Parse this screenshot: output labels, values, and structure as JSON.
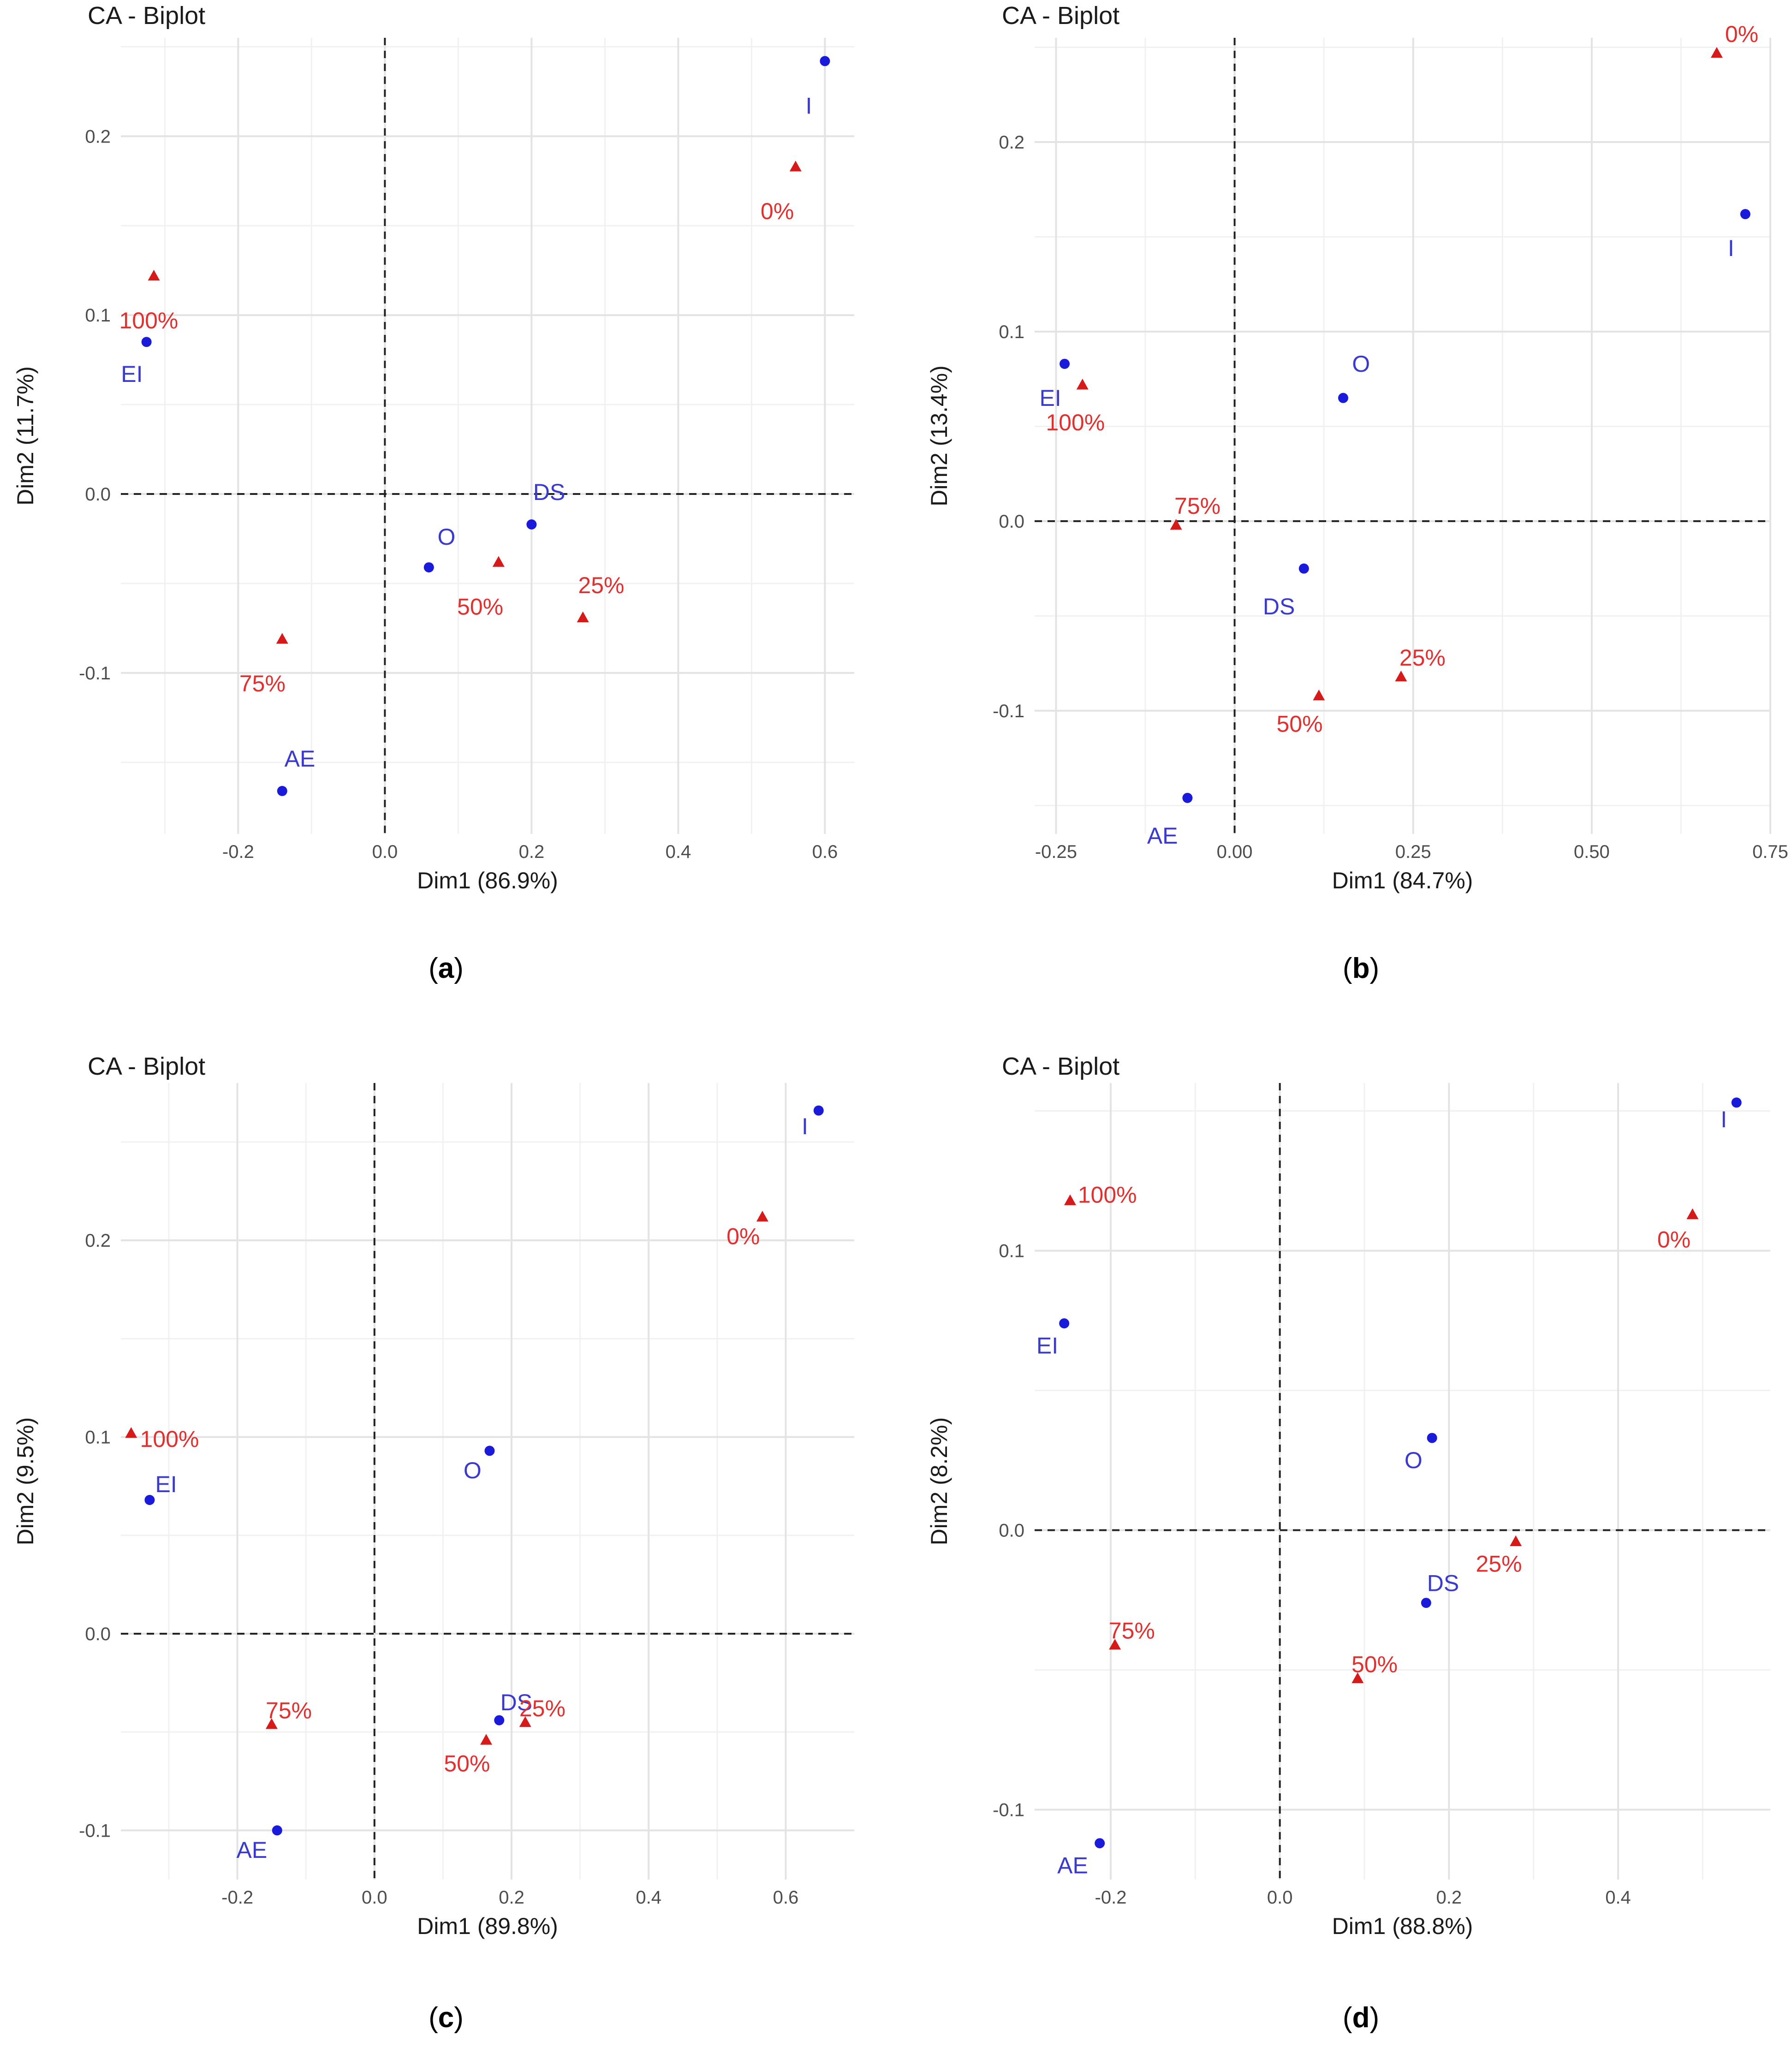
{
  "colors": {
    "row_points": "#1a1adb",
    "row_labels": "#3a3acd",
    "col_points": "#d61a1a",
    "col_labels": "#e03030",
    "grid_major": "#e3e3e3",
    "grid_minor": "#f1f1f1",
    "axis_text": "#4d4d4d",
    "title_text": "#1a1a1a",
    "zero_line": "#222222"
  },
  "chart_data": [
    {
      "type": "scatter",
      "panel_label_letter": "a",
      "title": "CA - Biplot",
      "xlabel": "Dim1 (86.9%)",
      "ylabel": "Dim2 (11.7%)",
      "xlim": [
        -0.36,
        0.64
      ],
      "ylim": [
        -0.19,
        0.255
      ],
      "xticks": [
        -0.2,
        0.0,
        0.2,
        0.4,
        0.6
      ],
      "xtick_labels": [
        "-0.2",
        "0.0",
        "0.2",
        "0.4",
        "0.6"
      ],
      "yticks": [
        -0.1,
        0.0,
        0.1,
        0.2
      ],
      "ytick_labels": [
        "-0.1",
        "0.0",
        "0.1",
        "0.2"
      ],
      "grid": true,
      "zero_lines": true,
      "series": [
        {
          "marker": "circle",
          "points": [
            {
              "label": "I",
              "x": 0.6,
              "y": 0.242,
              "lx": -0.022,
              "ly": -0.025
            },
            {
              "label": "EI",
              "x": -0.325,
              "y": 0.085,
              "lx": -0.02,
              "ly": -0.018
            },
            {
              "label": "DS",
              "x": 0.2,
              "y": -0.017,
              "lx": 0.024,
              "ly": 0.018
            },
            {
              "label": "O",
              "x": 0.06,
              "y": -0.041,
              "lx": 0.024,
              "ly": 0.017
            },
            {
              "label": "AE",
              "x": -0.14,
              "y": -0.166,
              "lx": 0.024,
              "ly": 0.018
            }
          ]
        },
        {
          "marker": "triangle",
          "points": [
            {
              "label": "0%",
              "x": 0.56,
              "y": 0.183,
              "lx": -0.025,
              "ly": -0.025
            },
            {
              "label": "100%",
              "x": -0.315,
              "y": 0.122,
              "lx": -0.007,
              "ly": -0.025
            },
            {
              "label": "50%",
              "x": 0.155,
              "y": -0.038,
              "lx": -0.025,
              "ly": -0.025
            },
            {
              "label": "25%",
              "x": 0.27,
              "y": -0.069,
              "lx": 0.025,
              "ly": 0.018
            },
            {
              "label": "75%",
              "x": -0.14,
              "y": -0.081,
              "lx": -0.027,
              "ly": -0.025
            }
          ]
        }
      ]
    },
    {
      "type": "scatter",
      "panel_label_letter": "b",
      "title": "CA - Biplot",
      "xlabel": "Dim1 (84.7%)",
      "ylabel": "Dim2 (13.4%)",
      "xlim": [
        -0.28,
        0.75
      ],
      "ylim": [
        -0.165,
        0.255
      ],
      "xticks": [
        -0.25,
        0.0,
        0.25,
        0.5,
        0.75
      ],
      "xtick_labels": [
        "-0.25",
        "0.00",
        "0.25",
        "0.50",
        "0.75"
      ],
      "yticks": [
        -0.1,
        0.0,
        0.1,
        0.2
      ],
      "ytick_labels": [
        "-0.1",
        "0.0",
        "0.1",
        "0.2"
      ],
      "grid": true,
      "zero_lines": true,
      "series": [
        {
          "marker": "circle",
          "points": [
            {
              "label": "I",
              "x": 0.715,
              "y": 0.162,
              "lx": -0.02,
              "ly": -0.018
            },
            {
              "label": "EI",
              "x": -0.238,
              "y": 0.083,
              "lx": -0.02,
              "ly": -0.018
            },
            {
              "label": "O",
              "x": 0.152,
              "y": 0.065,
              "lx": 0.025,
              "ly": 0.018
            },
            {
              "label": "DS",
              "x": 0.097,
              "y": -0.025,
              "lx": -0.035,
              "ly": -0.02
            },
            {
              "label": "AE",
              "x": -0.066,
              "y": -0.146,
              "lx": -0.035,
              "ly": -0.02
            }
          ]
        },
        {
          "marker": "triangle",
          "points": [
            {
              "label": "0%",
              "x": 0.675,
              "y": 0.247,
              "lx": 0.035,
              "ly": 0.01
            },
            {
              "label": "100%",
              "x": -0.213,
              "y": 0.072,
              "lx": -0.01,
              "ly": -0.02
            },
            {
              "label": "75%",
              "x": -0.082,
              "y": -0.002,
              "lx": 0.03,
              "ly": 0.01
            },
            {
              "label": "25%",
              "x": 0.233,
              "y": -0.082,
              "lx": 0.03,
              "ly": 0.01
            },
            {
              "label": "50%",
              "x": 0.118,
              "y": -0.092,
              "lx": -0.027,
              "ly": -0.015
            }
          ]
        }
      ]
    },
    {
      "type": "scatter",
      "panel_label_letter": "c",
      "title": "CA - Biplot",
      "xlabel": "Dim1 (89.8%)",
      "ylabel": "Dim2 (9.5%)",
      "xlim": [
        -0.37,
        0.7
      ],
      "ylim": [
        -0.125,
        0.28
      ],
      "xticks": [
        -0.2,
        0.0,
        0.2,
        0.4,
        0.6
      ],
      "xtick_labels": [
        "-0.2",
        "0.0",
        "0.2",
        "0.4",
        "0.6"
      ],
      "yticks": [
        -0.1,
        0.0,
        0.1,
        0.2
      ],
      "ytick_labels": [
        "-0.1",
        "0.0",
        "0.1",
        "0.2"
      ],
      "grid": true,
      "zero_lines": true,
      "series": [
        {
          "marker": "circle",
          "points": [
            {
              "label": "I",
              "x": 0.648,
              "y": 0.266,
              "lx": -0.02,
              "ly": -0.008
            },
            {
              "label": "O",
              "x": 0.168,
              "y": 0.093,
              "lx": -0.025,
              "ly": -0.01
            },
            {
              "label": "EI",
              "x": -0.328,
              "y": 0.068,
              "lx": 0.024,
              "ly": 0.008
            },
            {
              "label": "DS",
              "x": 0.182,
              "y": -0.044,
              "lx": 0.025,
              "ly": 0.009
            },
            {
              "label": "AE",
              "x": -0.142,
              "y": -0.1,
              "lx": -0.037,
              "ly": -0.01
            }
          ]
        },
        {
          "marker": "triangle",
          "points": [
            {
              "label": "0%",
              "x": 0.566,
              "y": 0.212,
              "lx": -0.028,
              "ly": -0.01
            },
            {
              "label": "100%",
              "x": -0.355,
              "y": 0.102,
              "lx": 0.056,
              "ly": -0.003
            },
            {
              "label": "75%",
              "x": -0.15,
              "y": -0.046,
              "lx": 0.025,
              "ly": 0.007
            },
            {
              "label": "25%",
              "x": 0.22,
              "y": -0.045,
              "lx": 0.025,
              "ly": 0.007
            },
            {
              "label": "50%",
              "x": 0.163,
              "y": -0.054,
              "lx": -0.028,
              "ly": -0.012
            }
          ]
        }
      ]
    },
    {
      "type": "scatter",
      "panel_label_letter": "d",
      "title": "CA - Biplot",
      "xlabel": "Dim1 (88.8%)",
      "ylabel": "Dim2 (8.2%)",
      "xlim": [
        -0.29,
        0.58
      ],
      "ylim": [
        -0.125,
        0.16
      ],
      "xticks": [
        -0.2,
        0.0,
        0.2,
        0.4
      ],
      "xtick_labels": [
        "-0.2",
        "0.0",
        "0.2",
        "0.4"
      ],
      "yticks": [
        -0.1,
        0.0,
        0.1
      ],
      "ytick_labels": [
        "-0.1",
        "0.0",
        "0.1"
      ],
      "grid": true,
      "zero_lines": true,
      "series": [
        {
          "marker": "circle",
          "points": [
            {
              "label": "I",
              "x": 0.54,
              "y": 0.153,
              "lx": -0.015,
              "ly": -0.006
            },
            {
              "label": "EI",
              "x": -0.255,
              "y": 0.074,
              "lx": -0.02,
              "ly": -0.008
            },
            {
              "label": "O",
              "x": 0.18,
              "y": 0.033,
              "lx": -0.022,
              "ly": -0.008
            },
            {
              "label": "DS",
              "x": 0.173,
              "y": -0.026,
              "lx": 0.02,
              "ly": 0.007
            },
            {
              "label": "AE",
              "x": -0.213,
              "y": -0.112,
              "lx": -0.032,
              "ly": -0.008
            }
          ]
        },
        {
          "marker": "triangle",
          "points": [
            {
              "label": "0%",
              "x": 0.488,
              "y": 0.113,
              "lx": -0.022,
              "ly": -0.009
            },
            {
              "label": "100%",
              "x": -0.248,
              "y": 0.118,
              "lx": 0.044,
              "ly": 0.002
            },
            {
              "label": "25%",
              "x": 0.279,
              "y": -0.004,
              "lx": -0.02,
              "ly": -0.008
            },
            {
              "label": "75%",
              "x": -0.195,
              "y": -0.041,
              "lx": 0.02,
              "ly": 0.005
            },
            {
              "label": "50%",
              "x": 0.092,
              "y": -0.053,
              "lx": 0.02,
              "ly": 0.005
            }
          ]
        }
      ]
    }
  ]
}
